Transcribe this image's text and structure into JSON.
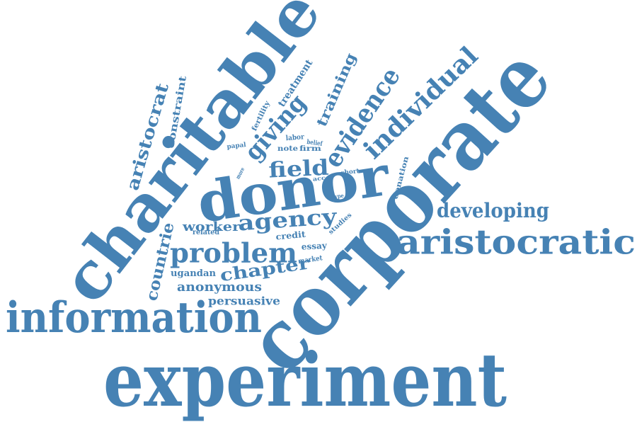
{
  "color": "#4682b4",
  "words": [
    "experiment",
    "corporate",
    "charitable",
    "donor",
    "information",
    "aristocratic",
    "developing",
    "individual",
    "evidence",
    "field",
    "giving",
    "aristocrat",
    "problem",
    "agency",
    "chapter",
    "countrie",
    "anonymous",
    "persuasive",
    "worker",
    "ugandan",
    "training",
    "treatment",
    "constraint",
    "fertility",
    "labor",
    "belief",
    "papal",
    "note",
    "firm",
    "acc",
    "short",
    "donation",
    "type",
    "studies",
    "credit",
    "related",
    "essay",
    "market",
    "more"
  ]
}
